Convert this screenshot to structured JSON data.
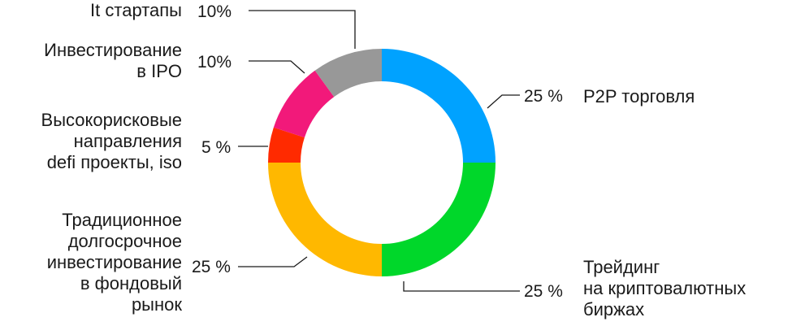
{
  "chart_data": {
    "type": "pie",
    "style": "donut",
    "legend": "none",
    "slices": [
      {
        "label_lines": [
          "P2P торговля"
        ],
        "value": 25,
        "pct_label": "25 %",
        "color": "#00A2FF"
      },
      {
        "label_lines": [
          "Трейдинг",
          "на криптовалютных",
          "биржах"
        ],
        "value": 25,
        "pct_label": "25 %",
        "color": "#00D72A"
      },
      {
        "label_lines": [
          "Традиционное",
          "долгосрочное",
          "инвестирование",
          "в фондовый",
          "рынок"
        ],
        "value": 25,
        "pct_label": "25 %",
        "color": "#FFB800"
      },
      {
        "label_lines": [
          "Высокорисковые",
          "направления",
          "defi проекты, iso"
        ],
        "value": 5,
        "pct_label": "5 %",
        "color": "#FF2A00"
      },
      {
        "label_lines": [
          "Инвестирование",
          "в IPO"
        ],
        "value": 10,
        "pct_label": "10%",
        "color": "#F2197A"
      },
      {
        "label_lines": [
          "It стартапы"
        ],
        "value": 10,
        "pct_label": "10%",
        "color": "#989898"
      }
    ]
  }
}
